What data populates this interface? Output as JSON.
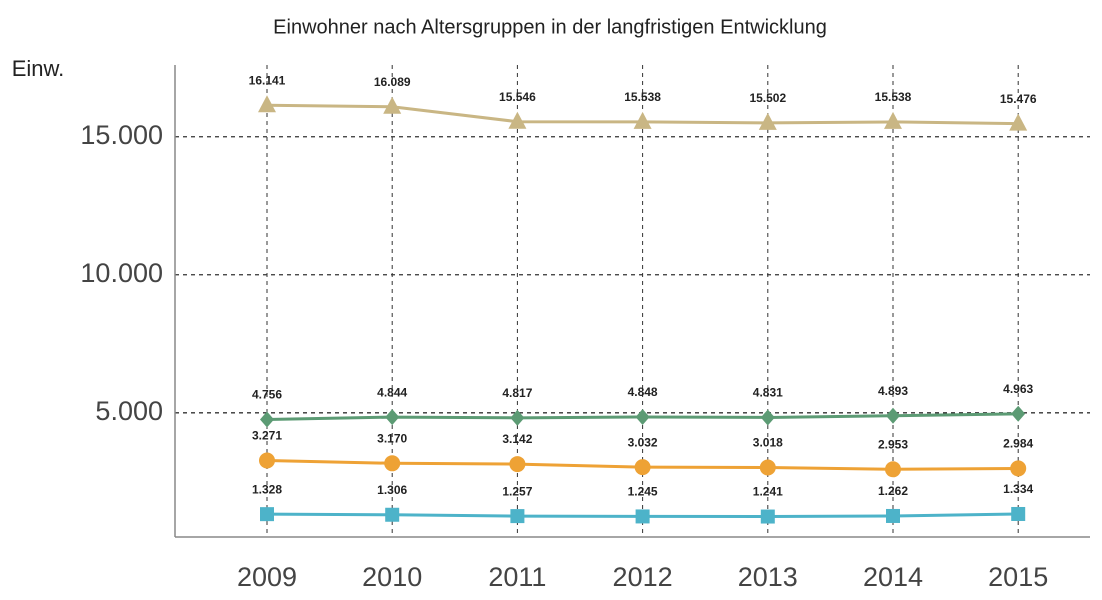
{
  "chart_data": {
    "type": "line",
    "title": "Einwohner nach Altersgruppen in der langfristigen Entwicklung",
    "y_label": "Einw.",
    "categories": [
      "2009",
      "2010",
      "2011",
      "2012",
      "2013",
      "2014",
      "2015"
    ],
    "series": [
      {
        "color": "#c9b684",
        "marker": "triangle",
        "values": [
          16141,
          16089,
          15546,
          15538,
          15502,
          15538,
          15476
        ],
        "value_labels": [
          "16.141",
          "16.089",
          "15.546",
          "15.538",
          "15.502",
          "15.538",
          "15.476"
        ]
      },
      {
        "color": "#5c9b74",
        "marker": "diamond",
        "values": [
          4756,
          4844,
          4817,
          4848,
          4831,
          4893,
          4963
        ],
        "value_labels": [
          "4.756",
          "4.844",
          "4.817",
          "4.848",
          "4.831",
          "4.893",
          "4.963"
        ]
      },
      {
        "color": "#eea235",
        "marker": "circle",
        "values": [
          3271,
          3170,
          3142,
          3032,
          3018,
          2953,
          2984
        ],
        "value_labels": [
          "3.271",
          "3.170",
          "3.142",
          "3.032",
          "3.018",
          "2.953",
          "2.984"
        ]
      },
      {
        "color": "#4db3c9",
        "marker": "square",
        "values": [
          1328,
          1306,
          1257,
          1245,
          1241,
          1262,
          1334
        ],
        "value_labels": [
          "1.328",
          "1.306",
          "1.257",
          "1.245",
          "1.241",
          "1.262",
          "1.334"
        ]
      }
    ],
    "ylim": [
      500,
      17600
    ],
    "yticks": [
      {
        "value": 5000,
        "label": "5.000"
      },
      {
        "value": 10000,
        "label": "10.000"
      },
      {
        "value": 15000,
        "label": "15.000"
      }
    ],
    "grid": true
  }
}
